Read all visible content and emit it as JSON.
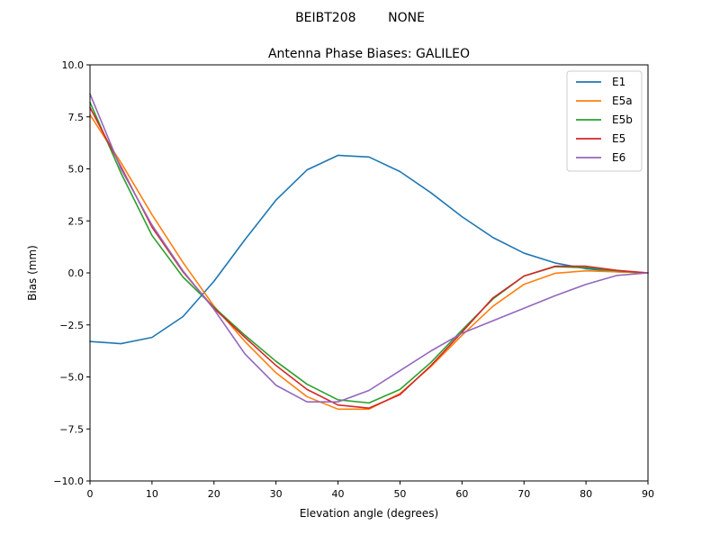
{
  "chart_data": {
    "type": "line",
    "suptitle": "BEIBT208        NONE",
    "title": "Antenna Phase Biases: GALILEO",
    "xlabel": "Elevation angle (degrees)",
    "ylabel": "Bias (mm)",
    "xlim": [
      0,
      90
    ],
    "ylim": [
      -10,
      10
    ],
    "xticks": [
      "0",
      "10",
      "20",
      "30",
      "40",
      "50",
      "60",
      "70",
      "80",
      "90"
    ],
    "yticks": [
      "10.0",
      "7.5",
      "5.0",
      "2.5",
      "0.0",
      "−2.5",
      "−5.0",
      "−7.5",
      "−10.0"
    ],
    "grid": false,
    "legend_position": "top-right",
    "x": [
      0,
      5,
      10,
      15,
      20,
      25,
      30,
      35,
      40,
      45,
      50,
      55,
      60,
      65,
      70,
      75,
      80,
      85,
      90
    ],
    "series": [
      {
        "name": "E1",
        "color": "#1f77b4",
        "values": [
          -3.3,
          -3.4,
          -3.1,
          -2.1,
          -0.4,
          1.6,
          3.5,
          4.95,
          5.65,
          5.57,
          4.87,
          3.85,
          2.7,
          1.7,
          0.95,
          0.48,
          0.2,
          0.05,
          0.0
        ]
      },
      {
        "name": "E5a",
        "color": "#ff7f0e",
        "values": [
          7.6,
          5.3,
          2.8,
          0.5,
          -1.6,
          -3.3,
          -4.8,
          -5.95,
          -6.55,
          -6.55,
          -5.8,
          -4.5,
          -3.0,
          -1.6,
          -0.55,
          -0.02,
          0.1,
          0.05,
          0.0
        ]
      },
      {
        "name": "E5b",
        "color": "#2ca02c",
        "values": [
          8.2,
          4.8,
          1.8,
          -0.2,
          -1.65,
          -3.0,
          -4.25,
          -5.35,
          -6.1,
          -6.25,
          -5.6,
          -4.3,
          -2.75,
          -1.25,
          -0.15,
          0.3,
          0.25,
          0.1,
          0.0
        ]
      },
      {
        "name": "E5",
        "color": "#d62728",
        "values": [
          7.95,
          5.1,
          2.2,
          0.05,
          -1.7,
          -3.1,
          -4.45,
          -5.6,
          -6.35,
          -6.5,
          -5.85,
          -4.45,
          -2.85,
          -1.2,
          -0.15,
          0.32,
          0.32,
          0.12,
          0.0
        ]
      },
      {
        "name": "E6",
        "color": "#9467bd",
        "values": [
          8.6,
          5.0,
          2.3,
          0.1,
          -1.75,
          -3.9,
          -5.4,
          -6.2,
          -6.2,
          -5.65,
          -4.7,
          -3.75,
          -2.9,
          -2.3,
          -1.7,
          -1.1,
          -0.55,
          -0.12,
          0.0
        ]
      }
    ]
  }
}
